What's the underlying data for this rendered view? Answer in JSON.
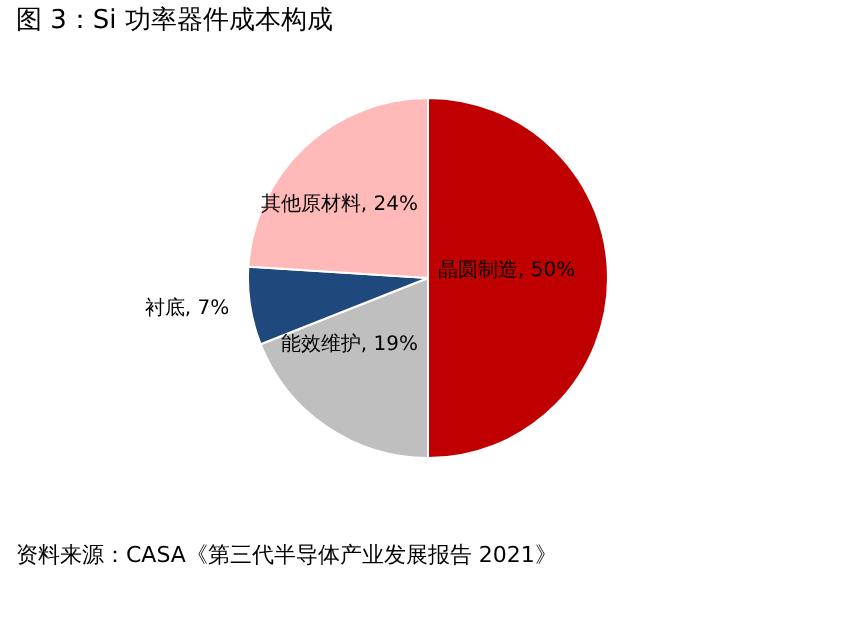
{
  "chart_data": {
    "type": "pie",
    "title": "图 3：Si 功率器件成本构成",
    "categories": [
      "晶圆制造",
      "能效维护",
      "衬底",
      "其他原材料"
    ],
    "values": [
      50,
      19,
      7,
      24
    ],
    "value_labels": [
      "50%",
      "19%",
      "7%",
      "24%"
    ],
    "colors": [
      "#c00000",
      "#bfbfbf",
      "#1f497d",
      "#ffb9b9"
    ],
    "annotations": [
      "资料来源：CASA《第三代半导体产业发展报告 2021》"
    ]
  }
}
